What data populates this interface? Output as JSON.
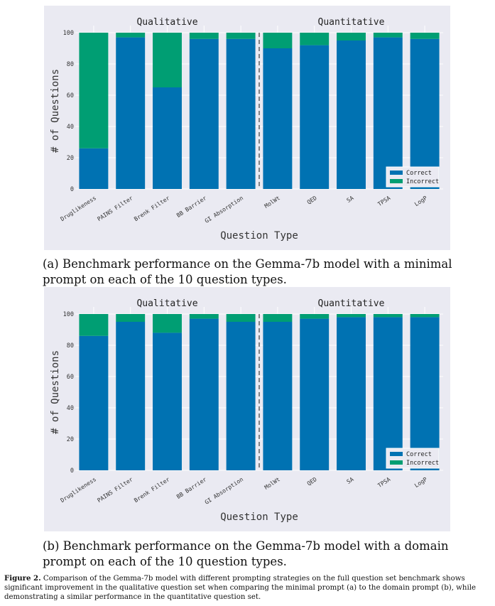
{
  "chart_data": [
    {
      "type": "bar",
      "stacked": true,
      "categories": [
        "Druglikeness",
        "PAINS Filter",
        "Brenk Filter",
        "BB Barrier",
        "GI Absorption",
        "MolWt",
        "QED",
        "SA",
        "TPSA",
        "LogP"
      ],
      "series": [
        {
          "name": "Correct",
          "color": "#0072b2",
          "values": [
            26,
            97,
            65,
            96,
            96,
            90,
            92,
            95,
            97,
            96
          ]
        },
        {
          "name": "Incorrect",
          "color": "#009e73",
          "values": [
            74,
            3,
            35,
            4,
            4,
            10,
            8,
            5,
            3,
            4
          ]
        }
      ],
      "group_labels": [
        "Qualitative",
        "Quantitative"
      ],
      "divider_after_index": 4,
      "xlabel": "Question Type",
      "ylabel": "# of Questions",
      "ylim": [
        0,
        100
      ],
      "yticks": [
        "0",
        "20",
        "40",
        "60",
        "80",
        "100"
      ],
      "grid": true,
      "legend_position": "lower-right",
      "caption": "(a) Benchmark performance on the Gemma-7b model with a minimal prompt on each of the 10 question types."
    },
    {
      "type": "bar",
      "stacked": true,
      "categories": [
        "Druglikeness",
        "PAINS Filter",
        "Brenk Filter",
        "BB Barrier",
        "GI Absorption",
        "MolWt",
        "QED",
        "SA",
        "TPSA",
        "LogP"
      ],
      "series": [
        {
          "name": "Correct",
          "color": "#0072b2",
          "values": [
            86,
            95,
            88,
            97,
            95,
            95,
            97,
            98,
            98,
            98
          ]
        },
        {
          "name": "Incorrect",
          "color": "#009e73",
          "values": [
            14,
            5,
            12,
            3,
            5,
            5,
            3,
            2,
            2,
            2
          ]
        }
      ],
      "group_labels": [
        "Qualitative",
        "Quantitative"
      ],
      "divider_after_index": 4,
      "xlabel": "Question Type",
      "ylabel": "# of Questions",
      "ylim": [
        0,
        100
      ],
      "yticks": [
        "0",
        "20",
        "40",
        "60",
        "80",
        "100"
      ],
      "grid": true,
      "legend_position": "lower-right",
      "caption": "(b) Benchmark performance on the Gemma-7b model with a domain prompt on each of the 10 question types."
    }
  ],
  "figure_caption": {
    "label": "Figure 2.",
    "text": " Comparison of the Gemma-7b model with different prompting strategies on the full question set benchmark shows significant improvement in the qualitative question set when comparing the minimal prompt (a) to the domain prompt (b), while demonstrating a similar performance in the quantitative question set."
  }
}
